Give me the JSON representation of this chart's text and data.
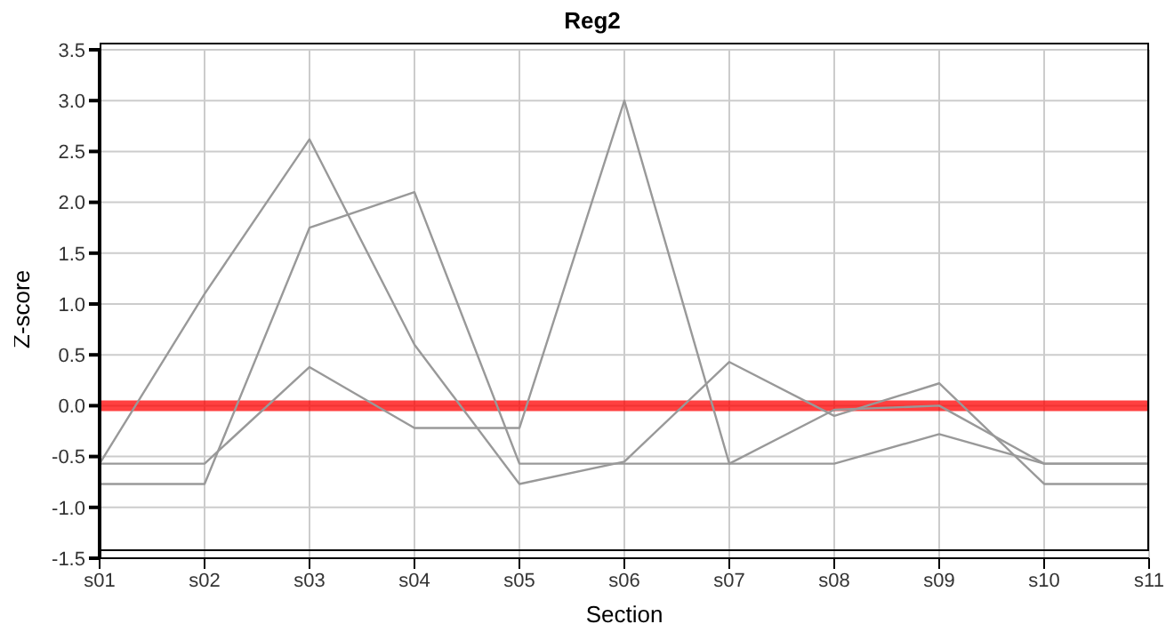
{
  "chart_data": {
    "type": "line",
    "title": "Reg2",
    "xlabel": "Section",
    "ylabel": "Z-score",
    "categories": [
      "s01",
      "s02",
      "s03",
      "s04",
      "s05",
      "s06",
      "s07",
      "s08",
      "s09",
      "s10",
      "s11"
    ],
    "series": [
      {
        "color": "#999999",
        "values": [
          -0.57,
          1.1,
          2.62,
          0.6,
          -0.77,
          -0.55,
          0.43,
          -0.1,
          0.22,
          -0.77,
          -0.77
        ]
      },
      {
        "color": "#999999",
        "values": [
          -0.77,
          -0.77,
          1.75,
          2.1,
          -0.57,
          -0.57,
          -0.57,
          -0.57,
          -0.28,
          -0.57,
          -0.57
        ]
      },
      {
        "color": "#999999",
        "values": [
          -0.57,
          -0.57,
          0.38,
          -0.22,
          -0.22,
          3.0,
          -0.57,
          -0.04,
          0.0,
          -0.57,
          -0.57
        ]
      }
    ],
    "ylim": [
      -1.5,
      3.5
    ],
    "yticks": [
      {
        "value": -1.5,
        "label": "-1.5"
      },
      {
        "value": -1,
        "label": "-1.0"
      },
      -0.5,
      {
        "value": 0,
        "label": "0.0"
      },
      0.5,
      {
        "value": 1,
        "label": "1.0"
      },
      1.5,
      {
        "value": 2,
        "label": "2.0"
      },
      2.5,
      {
        "value": 3,
        "label": "3.0"
      },
      3.5
    ],
    "ref_lines": [
      {
        "axis": "y",
        "value": 0,
        "color": "#ff0000"
      }
    ],
    "grid": true,
    "marker": "none",
    "line_style": "solid"
  }
}
